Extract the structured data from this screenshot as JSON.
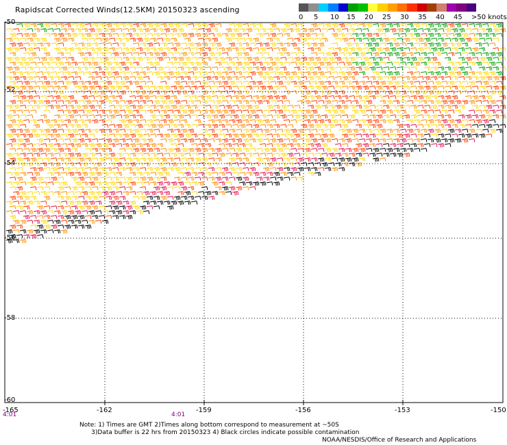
{
  "title": "Rapidscat Corrected Winds(12.5KM) 20150323 ascending",
  "legend": {
    "colors": [
      "#555555",
      "#8f8f8f",
      "#00d0ff",
      "#0080ff",
      "#0000d0",
      "#00a000",
      "#00c000",
      "#ffff40",
      "#ffd000",
      "#ffa000",
      "#ff7000",
      "#ff3000",
      "#d00000",
      "#a04000",
      "#d08070",
      "#a000b0",
      "#800080",
      "#4b0082"
    ],
    "labels": [
      "0",
      "5",
      "10",
      "15",
      "20",
      "25",
      "30",
      "35",
      "40",
      "45",
      ">50 knots"
    ]
  },
  "longitudes": [
    "-165",
    "-162",
    "-159",
    "-156",
    "-153",
    "-150"
  ],
  "latitudes": [
    "-50",
    "-52",
    "-54",
    "-56",
    "-58",
    "-60"
  ],
  "times": [
    "4:01",
    "4:01"
  ],
  "note": "Note: 1) Times are GMT 2)Times along bottom correspond to measurement at ~50S\n      3)Data buffer is 22 hrs from 20150323 4) Black circles indicate possible contamination",
  "credit": "NOAA/NESDIS/Office of Research and Applications",
  "wind_colors": {
    "yellow": "#ffd700",
    "orange": "#ff8c00",
    "red": "#ff3a00",
    "magenta": "#e0104c",
    "green": "#00a000",
    "black": "#000000"
  }
}
